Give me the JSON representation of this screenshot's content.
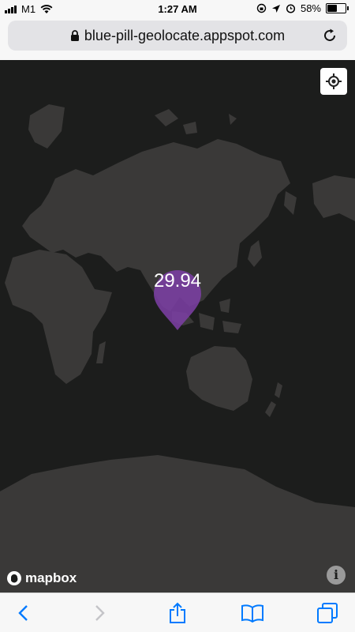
{
  "status_bar": {
    "carrier": "M1",
    "time": "1:27 AM",
    "battery_percent": "58%",
    "battery_level": 0.58,
    "icons": [
      "signal-icon",
      "wifi-icon",
      "orientation-lock-icon",
      "location-arrow-icon",
      "alarm-icon",
      "battery-icon"
    ]
  },
  "address_bar": {
    "url": "blue-pill-geolocate.appspot.com",
    "icons": [
      "lock-icon",
      "reload-icon"
    ]
  },
  "map": {
    "marker_label": "29.94",
    "marker_color": "#7b3fa3",
    "land_color": "#3a3938",
    "water_color": "#1c1d1c",
    "attribution": "mapbox",
    "controls": [
      "geolocate-icon",
      "info-icon"
    ]
  },
  "toolbar": {
    "icons": [
      "back-icon",
      "forward-icon",
      "share-icon",
      "bookmarks-icon",
      "tabs-icon"
    ],
    "accent": "#007aff"
  }
}
